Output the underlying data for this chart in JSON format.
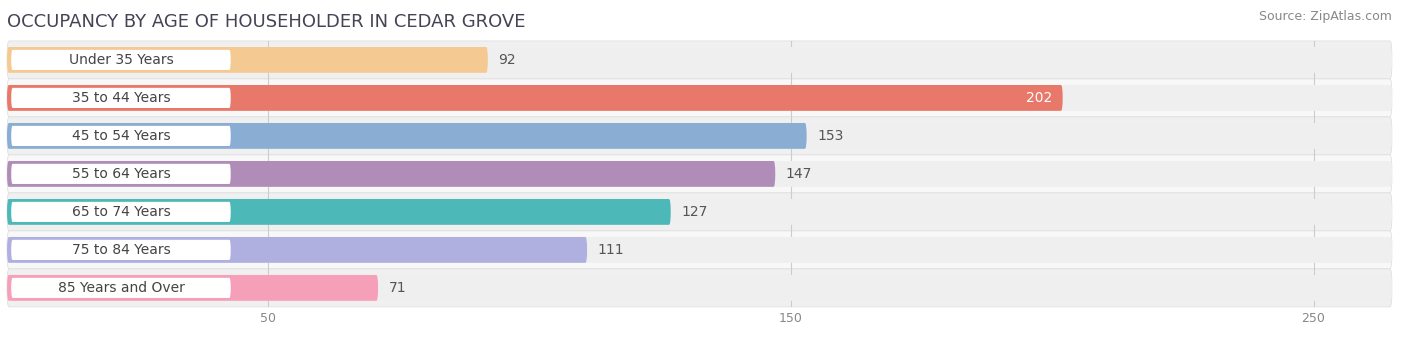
{
  "title": "OCCUPANCY BY AGE OF HOUSEHOLDER IN CEDAR GROVE",
  "source": "Source: ZipAtlas.com",
  "categories": [
    "Under 35 Years",
    "35 to 44 Years",
    "45 to 54 Years",
    "55 to 64 Years",
    "65 to 74 Years",
    "75 to 84 Years",
    "85 Years and Over"
  ],
  "values": [
    92,
    202,
    153,
    147,
    127,
    111,
    71
  ],
  "bar_colors": [
    "#f5c992",
    "#e8796a",
    "#8aadd4",
    "#b08db8",
    "#4db8b8",
    "#b0b0e0",
    "#f5a0b8"
  ],
  "bar_bg_color": "#efefef",
  "row_bg_color": "#f5f5f5",
  "xlim_max": 265,
  "xticks": [
    50,
    150,
    250
  ],
  "title_fontsize": 13,
  "source_fontsize": 9,
  "label_fontsize": 10,
  "value_fontsize": 10,
  "bar_height": 0.68,
  "background_color": "#ffffff",
  "value_inside_color": "#ffffff",
  "value_outside_color": "#555555",
  "label_bg_color": "#ffffff",
  "label_text_color": "#444444",
  "grid_color": "#cccccc",
  "tick_color": "#888888"
}
